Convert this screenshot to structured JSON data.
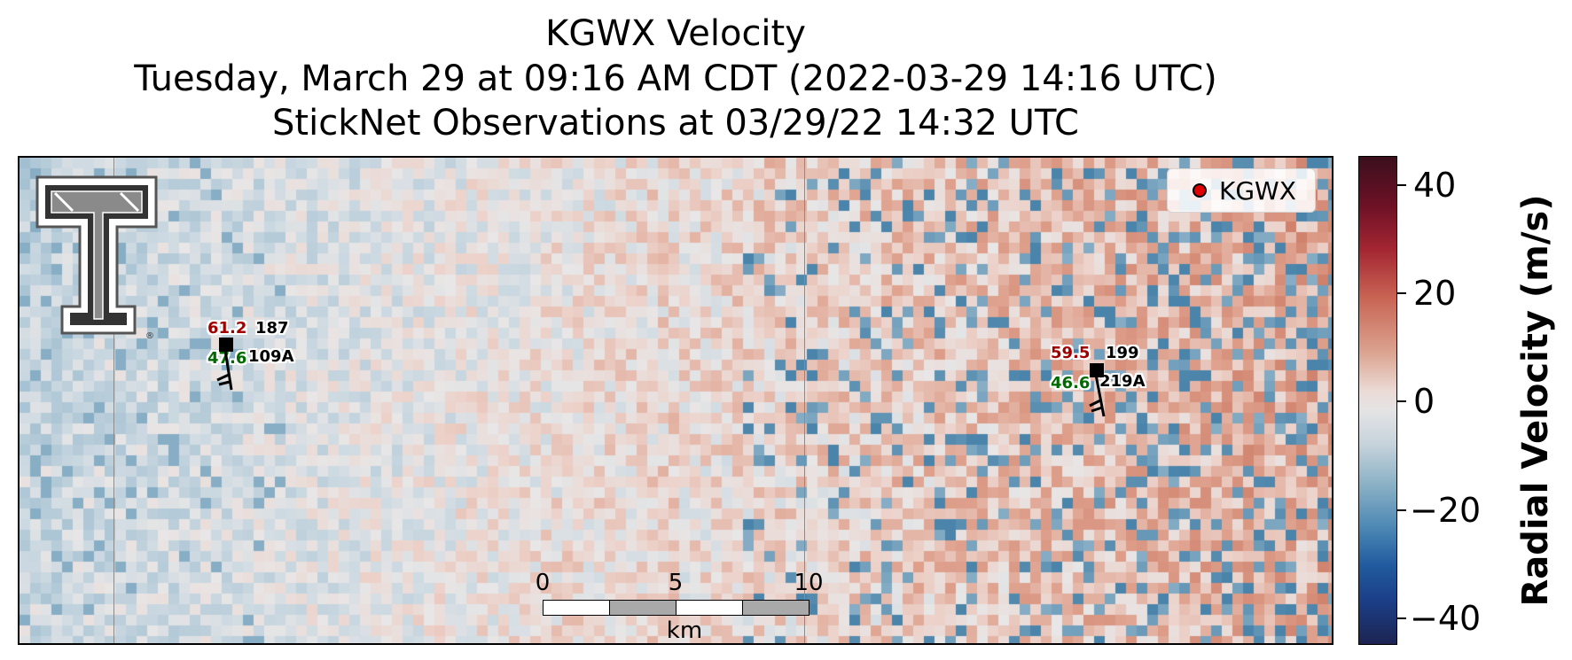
{
  "title": {
    "line1": "KGWX Velocity",
    "line2": "Tuesday, March 29 at 09:16 AM CDT (2022-03-29 14:16 UTC)",
    "line3": "StickNet Observations at 03/29/22 14:32 UTC"
  },
  "legend": {
    "label": "KGWX",
    "marker_color": "#e00000"
  },
  "stations": [
    {
      "temp": "61.2",
      "dir": "187",
      "dew": "47.6",
      "id": "109A"
    },
    {
      "temp": "59.5",
      "dir": "199",
      "dew": "46.6",
      "id": "219A"
    }
  ],
  "scalebar": {
    "ticks": [
      "0",
      "5",
      "10"
    ],
    "unit": "km"
  },
  "colorbar": {
    "label": "Radial Velocity (m/s)",
    "ticks": [
      "40",
      "20",
      "0",
      "−20",
      "−40"
    ],
    "range": [
      -45,
      45
    ]
  },
  "logo": {
    "name": "texas-tech-double-t-logo"
  },
  "colors": {
    "temp": "#a00000",
    "dew": "#006a00"
  }
}
